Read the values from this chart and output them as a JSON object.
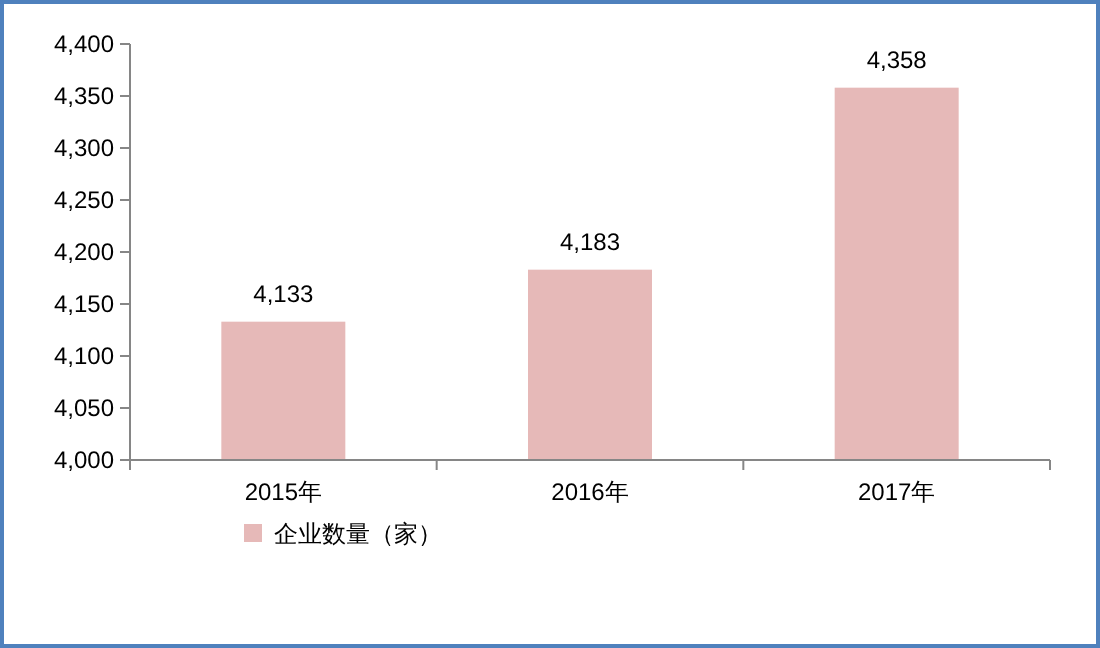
{
  "chart_data": {
    "type": "bar",
    "categories": [
      "2015年",
      "2016年",
      "2017年"
    ],
    "series": [
      {
        "name": "企业数量（家）",
        "color": "#e6b9b8",
        "values": [
          4133,
          4183,
          4358
        ],
        "value_labels": [
          "4,133",
          "4,183",
          "4,358"
        ]
      }
    ],
    "ylim": [
      4000,
      4400
    ],
    "yticks": [
      {
        "value": 4000,
        "label": "4,000"
      },
      {
        "value": 4050,
        "label": "4,050"
      },
      {
        "value": 4100,
        "label": "4,100"
      },
      {
        "value": 4150,
        "label": "4,150"
      },
      {
        "value": 4200,
        "label": "4,200"
      },
      {
        "value": 4250,
        "label": "4,250"
      },
      {
        "value": 4300,
        "label": "4,300"
      },
      {
        "value": 4350,
        "label": "4,350"
      },
      {
        "value": 4400,
        "label": "4,400"
      }
    ],
    "grid": false,
    "legend": "bottom"
  }
}
